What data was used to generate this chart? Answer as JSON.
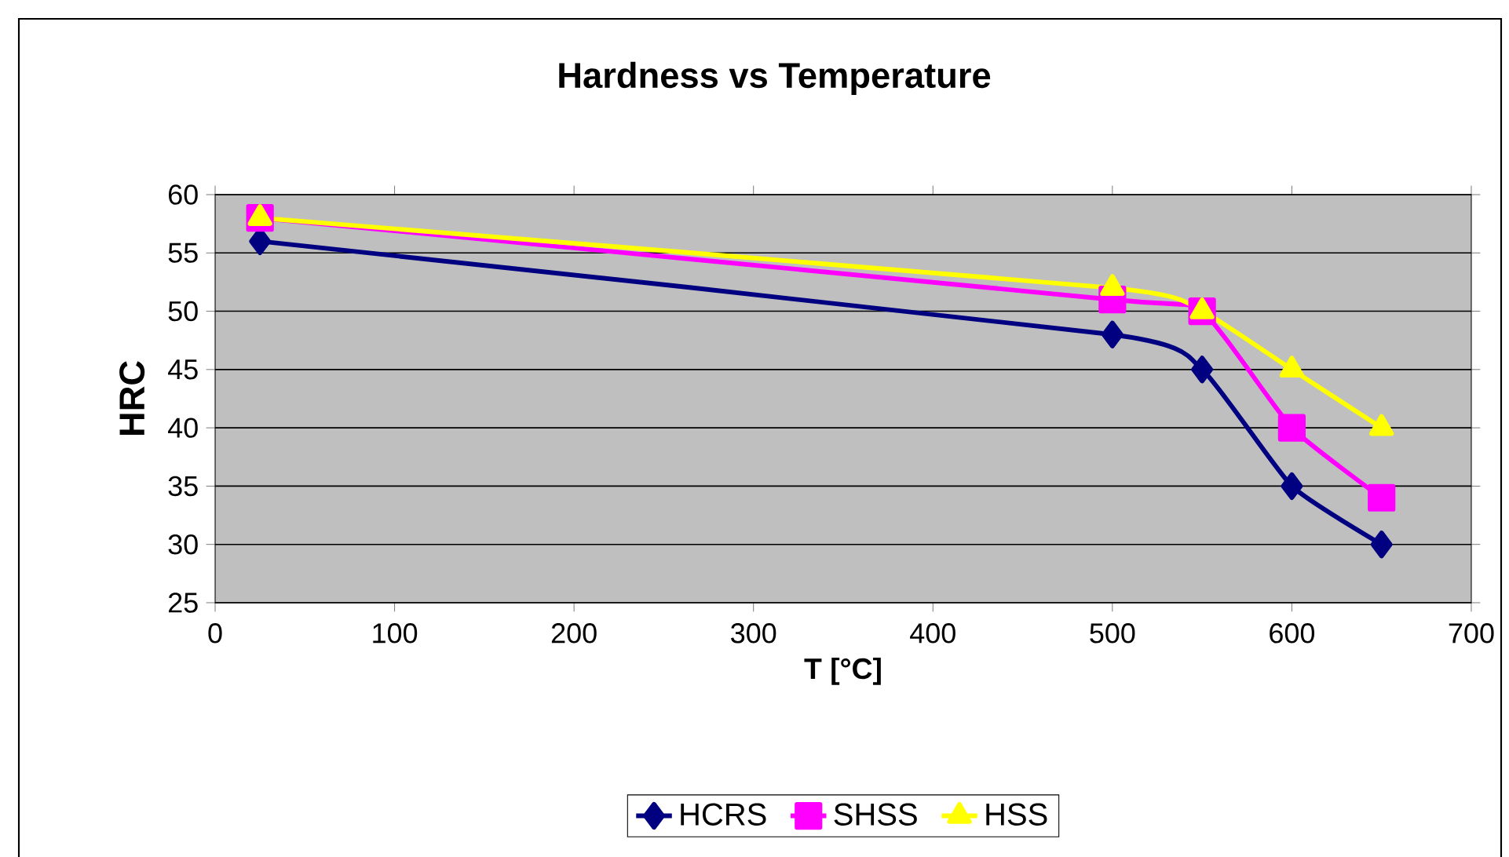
{
  "chart_data": {
    "type": "line",
    "title": "Hardness vs Temperature",
    "xlabel": "T [°C]",
    "ylabel": "HRC",
    "x": [
      25,
      500,
      550,
      600,
      650
    ],
    "series": [
      {
        "name": "HCRS",
        "color": "#000080",
        "marker": "diamond",
        "values": [
          56,
          48,
          45,
          35,
          30
        ]
      },
      {
        "name": "SHSS",
        "color": "#ff00ff",
        "marker": "square",
        "values": [
          58,
          51,
          50,
          40,
          34
        ]
      },
      {
        "name": "HSS",
        "color": "#ffff00",
        "marker": "triangle",
        "values": [
          58,
          52,
          50,
          45,
          40
        ]
      }
    ],
    "xlim": [
      0,
      700
    ],
    "xticks": [
      0,
      100,
      200,
      300,
      400,
      500,
      600,
      700
    ],
    "ylim": [
      25,
      60
    ],
    "yticks": [
      25,
      30,
      35,
      40,
      45,
      50,
      55,
      60
    ],
    "grid": "y",
    "legend": "bottom",
    "line_style": "solid"
  }
}
